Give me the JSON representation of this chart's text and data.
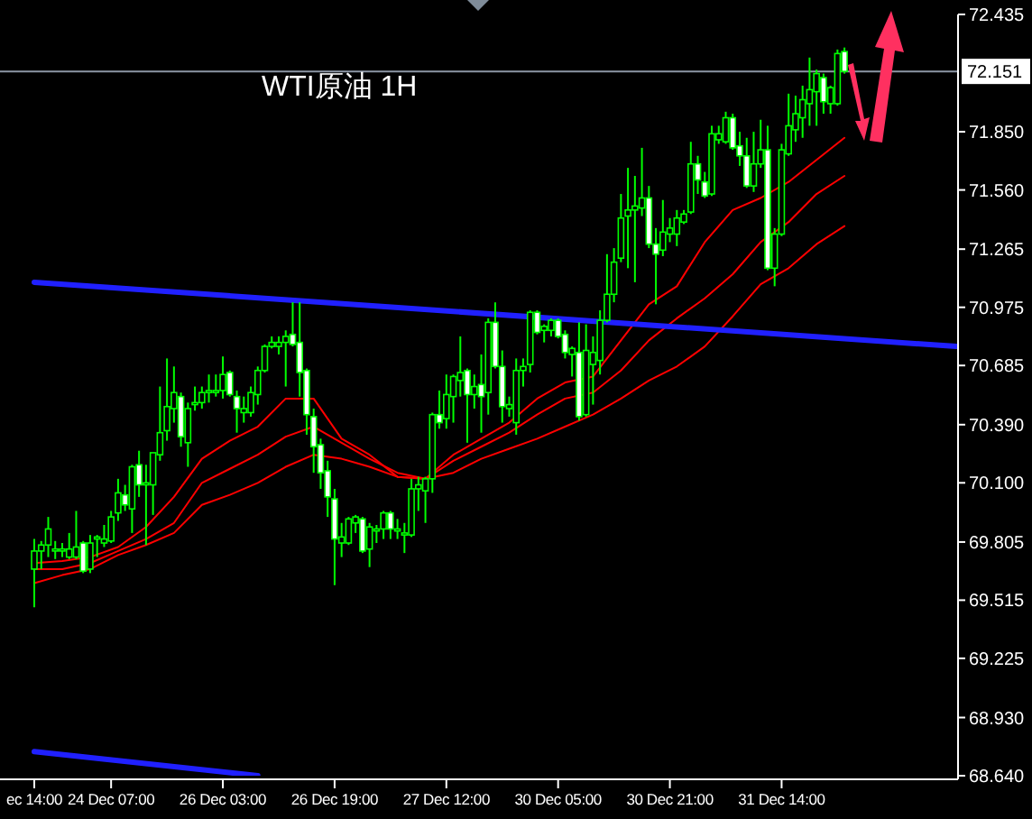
{
  "chart_data": {
    "type": "candlestick",
    "title": "WTI原油 1H",
    "color": "#00ff00",
    "categories": [
      "ec 14:00",
      null,
      null,
      null,
      null,
      null,
      null,
      null,
      null,
      null,
      null,
      "24 Dec 07:00",
      null,
      null,
      null,
      null,
      null,
      null,
      null,
      null,
      null,
      null,
      null,
      null,
      null,
      null,
      null,
      "26 Dec 03:00",
      null,
      null,
      null,
      null,
      null,
      null,
      null,
      null,
      null,
      null,
      null,
      null,
      null,
      null,
      null,
      "26 Dec 19:00",
      null,
      null,
      null,
      null,
      null,
      null,
      null,
      null,
      null,
      null,
      null,
      null,
      null,
      null,
      null,
      "27 Dec 12:00",
      null,
      null,
      null,
      null,
      null,
      null,
      null,
      null,
      null,
      null,
      null,
      null,
      null,
      null,
      null,
      "30 Dec 05:00",
      null,
      null,
      null,
      null,
      null,
      null,
      null,
      null,
      null,
      null,
      null,
      null,
      null,
      null,
      null,
      "30 Dec 21:00",
      null,
      null,
      null,
      null,
      null,
      null,
      null,
      null,
      null,
      null,
      null,
      null,
      null,
      null,
      null,
      "31 Dec 14:00",
      null,
      null,
      null,
      null,
      null,
      null,
      null,
      null,
      null,
      null,
      null,
      null,
      null,
      null,
      null,
      null,
      null,
      null,
      null,
      null,
      null,
      null,
      null,
      null,
      null
    ],
    "ohlc": [
      [
        69.67,
        69.82,
        69.48,
        69.76
      ],
      [
        69.76,
        69.81,
        69.67,
        69.79
      ],
      [
        69.79,
        69.93,
        69.73,
        69.87
      ],
      [
        69.76,
        69.81,
        69.72,
        69.77
      ],
      [
        69.76,
        69.8,
        69.73,
        69.77
      ],
      [
        69.73,
        69.85,
        69.72,
        69.77
      ],
      [
        69.73,
        69.96,
        69.72,
        69.78
      ],
      [
        69.8,
        69.81,
        69.65,
        69.66
      ],
      [
        69.67,
        69.84,
        69.65,
        69.8
      ],
      [
        69.82,
        69.84,
        69.73,
        69.83
      ],
      [
        69.8,
        69.89,
        69.78,
        69.82
      ],
      [
        69.81,
        69.96,
        69.8,
        69.93
      ],
      [
        69.95,
        70.12,
        69.91,
        70.05
      ],
      [
        70.04,
        70.09,
        69.96,
        69.99
      ],
      [
        69.97,
        70.19,
        69.85,
        70.18
      ],
      [
        70.19,
        70.26,
        70.03,
        70.09
      ],
      [
        70.09,
        70.19,
        69.79,
        70.1
      ],
      [
        70.09,
        70.25,
        69.94,
        70.25
      ],
      [
        70.24,
        70.58,
        70.21,
        70.35
      ],
      [
        70.36,
        70.72,
        70.31,
        70.48
      ],
      [
        70.47,
        70.68,
        70.4,
        70.55
      ],
      [
        70.53,
        70.55,
        70.28,
        70.33
      ],
      [
        70.3,
        70.5,
        70.18,
        70.47
      ],
      [
        70.49,
        70.58,
        70.46,
        70.5
      ],
      [
        70.5,
        70.58,
        70.47,
        70.55
      ],
      [
        70.55,
        70.64,
        70.5,
        70.56
      ],
      [
        70.55,
        70.64,
        70.53,
        70.56
      ],
      [
        70.56,
        70.73,
        70.52,
        70.64
      ],
      [
        70.65,
        70.66,
        70.53,
        70.54
      ],
      [
        70.53,
        70.56,
        70.35,
        70.47
      ],
      [
        70.45,
        70.53,
        70.4,
        70.47
      ],
      [
        70.45,
        70.58,
        70.43,
        70.55
      ],
      [
        70.54,
        70.68,
        70.49,
        70.66
      ],
      [
        70.66,
        70.79,
        70.65,
        70.78
      ],
      [
        70.78,
        70.83,
        70.77,
        70.8
      ],
      [
        70.78,
        70.83,
        70.74,
        70.8
      ],
      [
        70.8,
        70.86,
        70.58,
        70.83
      ],
      [
        70.84,
        71.0,
        70.78,
        70.79
      ],
      [
        70.8,
        71.0,
        70.53,
        70.65
      ],
      [
        70.66,
        70.67,
        70.34,
        70.44
      ],
      [
        70.43,
        70.47,
        70.15,
        70.28
      ],
      [
        70.29,
        70.32,
        70.07,
        70.15
      ],
      [
        70.16,
        70.21,
        69.93,
        70.03
      ],
      [
        70.02,
        70.07,
        69.59,
        69.82
      ],
      [
        69.8,
        69.9,
        69.73,
        69.83
      ],
      [
        69.8,
        69.93,
        69.79,
        69.92
      ],
      [
        69.9,
        69.94,
        69.85,
        69.93
      ],
      [
        69.92,
        69.93,
        69.75,
        69.76
      ],
      [
        69.77,
        69.9,
        69.68,
        69.88
      ],
      [
        69.86,
        69.89,
        69.8,
        69.87
      ],
      [
        69.87,
        69.96,
        69.82,
        69.95
      ],
      [
        69.95,
        69.96,
        69.82,
        69.87
      ],
      [
        69.86,
        69.92,
        69.82,
        69.87
      ],
      [
        69.84,
        69.9,
        69.75,
        69.85
      ],
      [
        69.84,
        70.12,
        69.83,
        70.07
      ],
      [
        70.07,
        70.13,
        69.96,
        70.09
      ],
      [
        70.06,
        70.13,
        69.9,
        70.12
      ],
      [
        70.12,
        70.45,
        70.05,
        70.44
      ],
      [
        70.44,
        70.56,
        70.37,
        70.4
      ],
      [
        70.42,
        70.64,
        70.37,
        70.54
      ],
      [
        70.53,
        70.64,
        70.4,
        70.63
      ],
      [
        70.61,
        70.83,
        70.53,
        70.65
      ],
      [
        70.66,
        70.67,
        70.3,
        70.54
      ],
      [
        70.54,
        70.64,
        70.47,
        70.58
      ],
      [
        70.59,
        70.74,
        70.35,
        70.53
      ],
      [
        70.55,
        70.92,
        70.44,
        70.9
      ],
      [
        70.9,
        71.0,
        70.67,
        70.68
      ],
      [
        70.68,
        70.76,
        70.4,
        70.48
      ],
      [
        70.47,
        70.53,
        70.43,
        70.49
      ],
      [
        70.4,
        70.72,
        70.34,
        70.66
      ],
      [
        70.66,
        70.72,
        70.58,
        70.68
      ],
      [
        70.69,
        70.96,
        70.65,
        70.95
      ],
      [
        70.95,
        70.96,
        70.84,
        70.85
      ],
      [
        70.86,
        70.89,
        70.8,
        70.88
      ],
      [
        70.86,
        70.92,
        70.83,
        70.91
      ],
      [
        70.91,
        70.92,
        70.82,
        70.83
      ],
      [
        70.84,
        70.86,
        70.72,
        70.75
      ],
      [
        70.74,
        70.78,
        70.63,
        70.77
      ],
      [
        70.75,
        70.9,
        70.41,
        70.43
      ],
      [
        70.44,
        70.89,
        70.43,
        70.76
      ],
      [
        70.69,
        70.83,
        70.49,
        70.75
      ],
      [
        70.71,
        70.96,
        70.64,
        70.91
      ],
      [
        70.91,
        71.24,
        70.9,
        71.04
      ],
      [
        71.04,
        71.27,
        71.0,
        71.2
      ],
      [
        71.22,
        71.54,
        71.2,
        71.42
      ],
      [
        71.43,
        71.67,
        71.17,
        71.46
      ],
      [
        71.46,
        71.63,
        71.1,
        71.48
      ],
      [
        71.47,
        71.77,
        71.43,
        71.52
      ],
      [
        71.52,
        71.58,
        71.27,
        71.29
      ],
      [
        71.29,
        71.37,
        70.99,
        71.24
      ],
      [
        71.26,
        71.51,
        71.23,
        71.35
      ],
      [
        71.34,
        71.42,
        71.3,
        71.37
      ],
      [
        71.34,
        71.46,
        71.28,
        71.42
      ],
      [
        71.4,
        71.46,
        71.39,
        71.44
      ],
      [
        71.45,
        71.8,
        71.44,
        71.69
      ],
      [
        71.69,
        71.73,
        71.54,
        71.61
      ],
      [
        71.6,
        71.65,
        71.52,
        71.53
      ],
      [
        71.54,
        71.88,
        71.53,
        71.84
      ],
      [
        71.81,
        71.88,
        71.79,
        71.84
      ],
      [
        71.8,
        71.95,
        71.79,
        71.92
      ],
      [
        71.92,
        71.94,
        71.76,
        71.77
      ],
      [
        71.78,
        71.85,
        71.68,
        71.73
      ],
      [
        71.73,
        71.82,
        71.57,
        71.58
      ],
      [
        71.58,
        71.85,
        71.55,
        71.69
      ],
      [
        71.69,
        71.91,
        71.67,
        71.76
      ],
      [
        71.76,
        71.88,
        71.16,
        71.17
      ],
      [
        71.17,
        71.37,
        71.08,
        71.34
      ],
      [
        71.34,
        71.79,
        71.33,
        71.76
      ],
      [
        71.74,
        72.04,
        71.73,
        71.88
      ],
      [
        71.86,
        72.03,
        71.8,
        71.94
      ],
      [
        71.92,
        72.08,
        71.82,
        72.01
      ],
      [
        71.99,
        72.22,
        71.88,
        72.06
      ],
      [
        72.05,
        72.16,
        71.88,
        72.14
      ],
      [
        72.12,
        72.14,
        71.94,
        72.0
      ],
      [
        71.99,
        72.08,
        71.94,
        72.07
      ],
      [
        71.99,
        72.26,
        71.98,
        72.24
      ],
      [
        72.25,
        72.27,
        72.14,
        72.151
      ],
      null,
      null,
      null,
      null,
      null,
      null,
      null,
      null,
      null,
      null,
      null,
      null,
      null,
      null,
      null,
      null
    ],
    "series": [
      {
        "type": "line",
        "color": "#ff0000",
        "values": [
          69.7,
          null,
          null,
          null,
          69.71,
          null,
          null,
          null,
          69.73,
          null,
          null,
          null,
          69.78,
          null,
          null,
          null,
          69.88,
          null,
          null,
          null,
          70.03,
          null,
          null,
          null,
          70.22,
          null,
          null,
          null,
          70.31,
          null,
          null,
          null,
          70.38,
          null,
          null,
          null,
          70.52,
          null,
          null,
          null,
          70.52,
          null,
          null,
          null,
          70.32,
          null,
          null,
          null,
          70.24,
          null,
          null,
          null,
          70.13,
          null,
          null,
          null,
          70.12,
          null,
          null,
          null,
          70.24,
          null,
          null,
          null,
          70.32,
          null,
          null,
          null,
          70.4,
          null,
          null,
          null,
          70.52,
          null,
          null,
          null,
          70.6,
          null,
          null,
          null,
          70.63,
          null,
          null,
          null,
          70.81,
          null,
          null,
          null,
          70.99,
          null,
          null,
          null,
          71.08,
          null,
          null,
          null,
          71.3,
          null,
          null,
          null,
          71.46,
          null,
          null,
          null,
          71.52,
          null,
          null,
          null,
          71.6,
          null,
          null,
          null,
          71.71,
          null,
          null,
          null,
          71.82,
          null,
          null,
          null,
          null,
          null,
          null,
          null,
          null,
          null,
          null,
          null,
          null,
          null,
          null,
          null,
          null
        ]
      },
      {
        "type": "line",
        "color": "#ff0000",
        "values": [
          69.67,
          null,
          null,
          null,
          69.67,
          null,
          null,
          null,
          69.7,
          null,
          null,
          null,
          69.76,
          null,
          null,
          null,
          69.82,
          null,
          null,
          null,
          69.9,
          null,
          null,
          null,
          70.1,
          null,
          null,
          null,
          70.17,
          null,
          null,
          null,
          70.24,
          null,
          null,
          null,
          70.33,
          null,
          null,
          null,
          70.38,
          null,
          null,
          null,
          70.3,
          null,
          null,
          null,
          70.22,
          null,
          null,
          null,
          70.15,
          null,
          null,
          null,
          70.12,
          null,
          null,
          null,
          70.21,
          null,
          null,
          null,
          70.28,
          null,
          null,
          null,
          70.35,
          null,
          null,
          null,
          70.44,
          null,
          null,
          null,
          70.52,
          null,
          null,
          null,
          70.55,
          null,
          null,
          null,
          70.66,
          null,
          null,
          null,
          70.81,
          null,
          null,
          null,
          70.92,
          null,
          null,
          null,
          71.02,
          null,
          null,
          null,
          71.14,
          null,
          null,
          null,
          71.3,
          null,
          null,
          null,
          71.4,
          null,
          null,
          null,
          71.54,
          null,
          null,
          null,
          71.63,
          null,
          null,
          null,
          null,
          null,
          null,
          null,
          null,
          null,
          null,
          null,
          null,
          null,
          null,
          null,
          null
        ]
      },
      {
        "type": "line",
        "color": "#ff0000",
        "values": [
          69.6,
          null,
          null,
          null,
          69.64,
          null,
          null,
          null,
          69.67,
          null,
          null,
          null,
          69.74,
          null,
          null,
          null,
          69.79,
          null,
          null,
          null,
          69.85,
          null,
          null,
          null,
          69.99,
          null,
          null,
          null,
          70.04,
          null,
          null,
          null,
          70.1,
          null,
          null,
          null,
          70.18,
          null,
          null,
          null,
          70.24,
          null,
          null,
          null,
          70.22,
          null,
          null,
          null,
          70.18,
          null,
          null,
          null,
          70.13,
          null,
          null,
          null,
          70.12,
          null,
          null,
          null,
          70.15,
          null,
          null,
          null,
          70.22,
          null,
          null,
          null,
          70.27,
          null,
          null,
          null,
          70.32,
          null,
          null,
          null,
          70.38,
          null,
          null,
          null,
          70.44,
          null,
          null,
          null,
          70.52,
          null,
          null,
          null,
          70.61,
          null,
          null,
          null,
          70.68,
          null,
          null,
          null,
          70.78,
          null,
          null,
          null,
          70.93,
          null,
          null,
          null,
          71.09,
          null,
          null,
          null,
          71.17,
          null,
          null,
          null,
          71.29,
          null,
          null,
          null,
          71.38,
          null,
          null,
          null,
          null,
          null,
          null,
          null,
          null,
          null,
          null,
          null,
          null,
          null,
          null,
          null,
          null
        ]
      },
      {
        "type": "line",
        "color": "#2020ff",
        "values": [
          71.1,
          null,
          null,
          null,
          null,
          null,
          null,
          null,
          null,
          null,
          null,
          null,
          null,
          null,
          null,
          null,
          null,
          null,
          null,
          null,
          null,
          null,
          null,
          null,
          null,
          null,
          null,
          null,
          null,
          null,
          null,
          null,
          null,
          null,
          null,
          null,
          null,
          null,
          null,
          null,
          null,
          null,
          null,
          null,
          null,
          null,
          null,
          null,
          null,
          null,
          null,
          null,
          null,
          null,
          null,
          null,
          null,
          null,
          null,
          null,
          null,
          null,
          null,
          null,
          null,
          null,
          null,
          null,
          null,
          null,
          null,
          null,
          null,
          null,
          null,
          null,
          null,
          null,
          null,
          null,
          null,
          null,
          null,
          null,
          null,
          null,
          null,
          null,
          null,
          null,
          null,
          null,
          null,
          null,
          null,
          null,
          null,
          null,
          null,
          null,
          null,
          null,
          null,
          null,
          null,
          null,
          null,
          null,
          null,
          null,
          null,
          null,
          null,
          null,
          null,
          null,
          null,
          null,
          null,
          null,
          null,
          null,
          null,
          null,
          null,
          null,
          null,
          null,
          null,
          null,
          null,
          null,
          70.78
        ]
      },
      {
        "type": "line",
        "color": "#2020ff",
        "values": [
          68.76,
          null,
          null,
          null,
          null,
          null,
          null,
          null,
          null,
          null,
          null,
          null,
          null,
          null,
          null,
          null,
          null,
          null,
          null,
          null,
          null,
          null,
          null,
          null,
          null,
          null,
          null,
          null,
          null,
          null,
          null,
          null,
          68.64,
          null,
          null,
          null,
          null,
          null,
          null,
          null,
          null,
          null,
          null,
          null,
          null,
          null,
          null,
          null,
          null,
          null,
          null,
          null,
          null,
          null,
          null,
          null,
          null,
          null,
          null,
          null,
          null,
          null,
          null,
          null,
          null,
          null,
          null,
          null,
          null,
          null,
          null,
          null,
          null,
          null,
          null,
          null,
          null,
          null,
          null,
          null,
          null,
          null,
          null,
          null,
          null,
          null,
          null,
          null,
          null,
          null,
          null,
          null,
          null,
          null,
          null,
          null,
          null,
          null,
          null,
          null,
          null,
          null,
          null,
          null,
          null,
          null,
          null,
          null,
          null,
          null,
          null,
          null,
          null,
          null,
          null,
          null,
          null,
          null,
          null,
          null,
          null,
          null,
          null,
          null,
          null,
          null,
          null,
          null,
          null,
          null,
          null,
          null,
          null
        ]
      }
    ],
    "ylim": [
      68.64,
      72.435
    ],
    "yticks": [
      72.435,
      {
        "value": 71.85,
        "label": "71.850"
      },
      {
        "value": 71.56,
        "label": "71.560"
      },
      71.265,
      70.975,
      70.685,
      {
        "value": 70.39,
        "label": "70.390"
      },
      {
        "value": 70.1,
        "label": "70.100"
      },
      69.805,
      69.515,
      69.225,
      {
        "value": 68.93,
        "label": "68.930"
      },
      {
        "value": 68.64,
        "label": "68.640"
      }
    ],
    "ref_lines": [
      {
        "axis": "y",
        "value": 72.151,
        "label": "72.151",
        "color": "#8c96a5"
      }
    ]
  }
}
